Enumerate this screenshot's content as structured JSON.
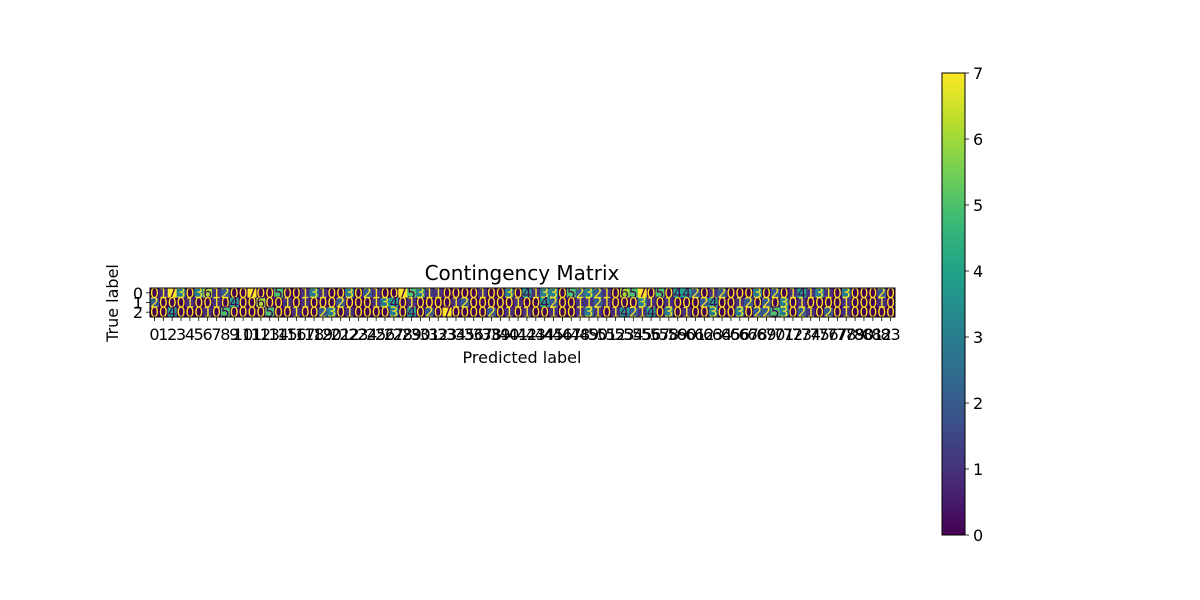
{
  "chart_data": {
    "type": "heatmap",
    "title": "Contingency Matrix",
    "xlabel": "Predicted label",
    "ylabel": "True label",
    "row_labels": [
      "0",
      "1",
      "2"
    ],
    "col_labels": [
      "0",
      "1",
      "2",
      "3",
      "4",
      "5",
      "6",
      "7",
      "8",
      "9",
      "10",
      "11",
      "12",
      "13",
      "14",
      "15",
      "16",
      "17",
      "18",
      "19",
      "20",
      "21",
      "22",
      "23",
      "24",
      "25",
      "26",
      "27",
      "28",
      "29",
      "30",
      "31",
      "32",
      "33",
      "34",
      "35",
      "36",
      "37",
      "38",
      "39",
      "40",
      "41",
      "42",
      "43",
      "44",
      "45",
      "46",
      "47",
      "48",
      "49",
      "50",
      "51",
      "52",
      "53",
      "54",
      "55",
      "56",
      "57",
      "58",
      "59",
      "60",
      "61",
      "62",
      "63",
      "64",
      "65",
      "66",
      "67",
      "68",
      "69",
      "70",
      "71",
      "72",
      "73",
      "74",
      "75",
      "76",
      "77",
      "78",
      "79",
      "80",
      "81",
      "82",
      "83"
    ],
    "values": [
      [
        0,
        1,
        7,
        3,
        0,
        3,
        6,
        1,
        2,
        0,
        0,
        7,
        0,
        0,
        5,
        0,
        0,
        1,
        3,
        1,
        0,
        0,
        3,
        0,
        2,
        1,
        0,
        0,
        7,
        5,
        3,
        1,
        1,
        0,
        0,
        0,
        0,
        1,
        0,
        0,
        3,
        0,
        4,
        1,
        3,
        3,
        0,
        5,
        2,
        3,
        2,
        1,
        0,
        6,
        5,
        7,
        0,
        5,
        0,
        4,
        4,
        2,
        0,
        1,
        2,
        0,
        0,
        0,
        3,
        0,
        2,
        0,
        1,
        4,
        1,
        3,
        1,
        0,
        3,
        0,
        0,
        0,
        2,
        0
      ],
      [
        2,
        0,
        0,
        0,
        1,
        0,
        0,
        1,
        0,
        4,
        0,
        0,
        6,
        0,
        0,
        1,
        0,
        1,
        0,
        0,
        0,
        2,
        0,
        0,
        0,
        1,
        3,
        4,
        0,
        1,
        0,
        0,
        0,
        0,
        1,
        2,
        0,
        0,
        0,
        0,
        0,
        1,
        0,
        0,
        4,
        2,
        0,
        0,
        1,
        1,
        2,
        1,
        0,
        0,
        0,
        3,
        1,
        0,
        1,
        0,
        0,
        0,
        2,
        4,
        0,
        0,
        1,
        2,
        0,
        2,
        0,
        3,
        0,
        1,
        0,
        0,
        0,
        0,
        1,
        0,
        0,
        0,
        1,
        0
      ],
      [
        0,
        0,
        4,
        0,
        0,
        0,
        1,
        0,
        5,
        0,
        0,
        0,
        0,
        5,
        0,
        0,
        1,
        0,
        0,
        2,
        3,
        0,
        1,
        0,
        0,
        0,
        0,
        3,
        0,
        4,
        0,
        2,
        0,
        7,
        0,
        0,
        0,
        0,
        2,
        0,
        1,
        0,
        1,
        0,
        0,
        1,
        0,
        0,
        1,
        3,
        1,
        0,
        1,
        4,
        2,
        1,
        4,
        0,
        3,
        0,
        1,
        0,
        0,
        3,
        0,
        0,
        3,
        0,
        2,
        2,
        5,
        3,
        0,
        2,
        1,
        0,
        2,
        0,
        1,
        0,
        0,
        0,
        0,
        0
      ]
    ],
    "vmin": 0,
    "vmax": 7,
    "colorbar_ticks": [
      "0",
      "1",
      "2",
      "3",
      "4",
      "5",
      "6",
      "7"
    ],
    "colormap": "viridis"
  }
}
